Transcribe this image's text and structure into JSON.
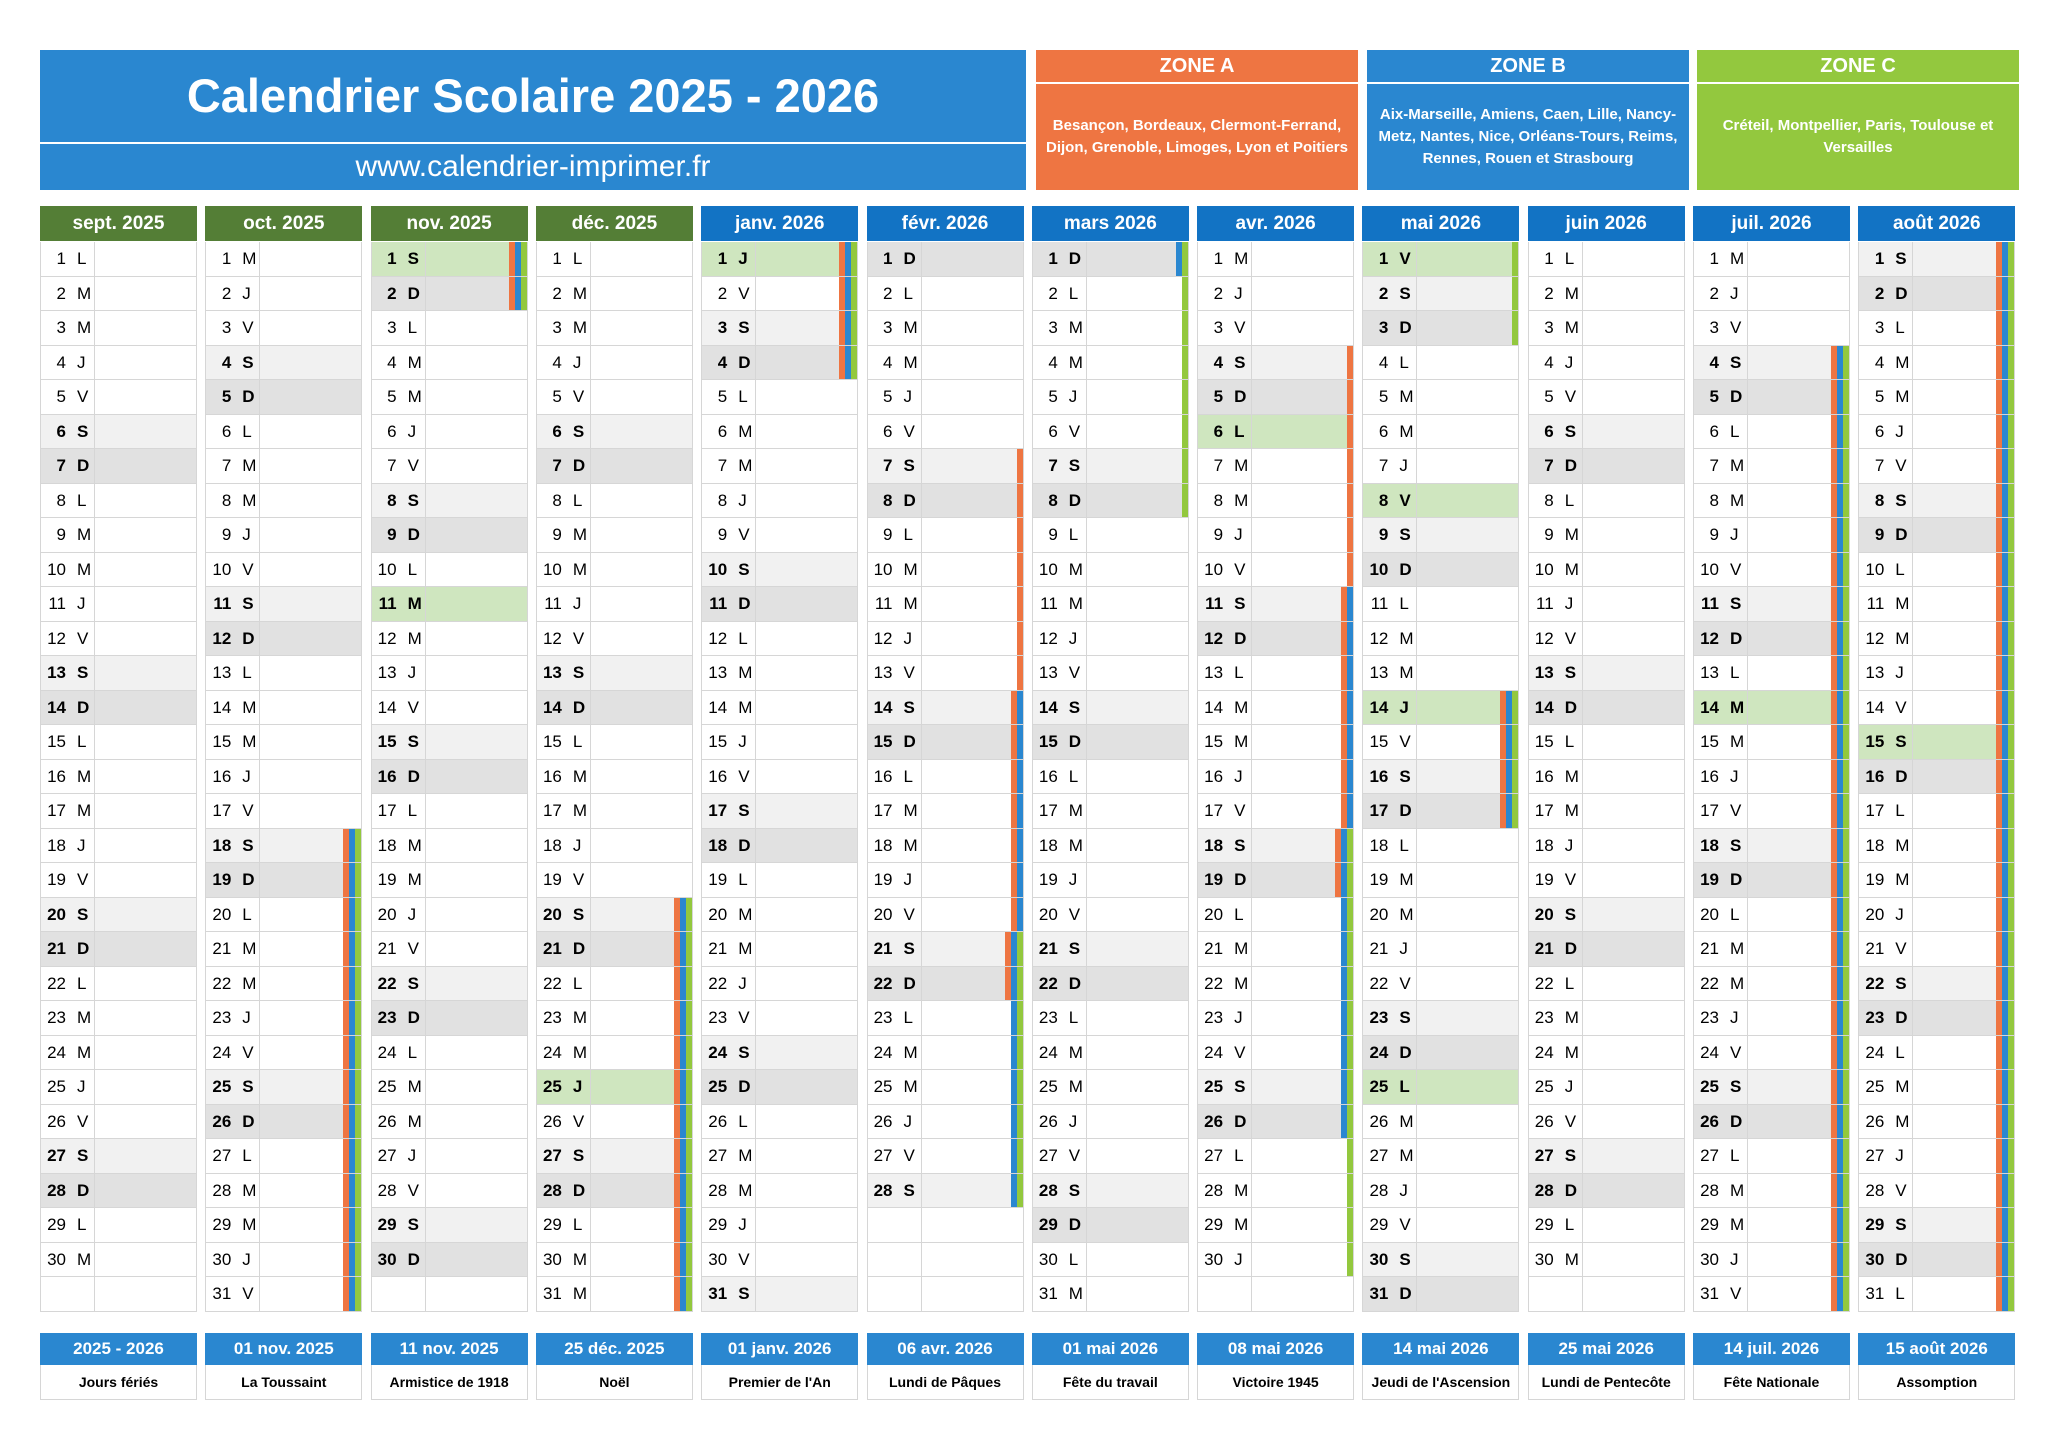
{
  "header": {
    "title": "Calendrier Scolaire 2025 - 2026",
    "website": "www.calendrier-imprimer.fr"
  },
  "zones": [
    {
      "name": "ZONE A",
      "color": "#ee7542",
      "cities": "Besançon, Bordeaux, Clermont-Ferrand, Dijon, Grenoble, Limoges, Lyon et Poitiers"
    },
    {
      "name": "ZONE B",
      "color": "#2a87d0",
      "cities": "Aix-Marseille, Amiens, Caen, Lille, Nancy-Metz, Nantes, Nice, Orléans-Tours, Reims, Rennes, Rouen et Strasbourg"
    },
    {
      "name": "ZONE C",
      "color": "#93c83e",
      "cities": "Créteil, Montpellier, Paris, Toulouse et Versailles"
    }
  ],
  "colors": {
    "quarter_2025_header": "#547e36",
    "quarter_2026_header": "#1273c4",
    "holiday_fill": "#cfe6bf",
    "saturday_fill": "#f1f1f1",
    "sunday_fill": "#e1e1e1"
  },
  "months": [
    {
      "label": "sept. 2025",
      "year": 2025,
      "month": 9,
      "days": 30,
      "holidays": [],
      "zones": {
        "a": [],
        "b": [],
        "c": []
      }
    },
    {
      "label": "oct. 2025",
      "year": 2025,
      "month": 10,
      "days": 31,
      "holidays": [],
      "zones": {
        "a": [
          [
            18,
            31
          ]
        ],
        "b": [
          [
            18,
            31
          ]
        ],
        "c": [
          [
            18,
            31
          ]
        ]
      }
    },
    {
      "label": "nov. 2025",
      "year": 2025,
      "month": 11,
      "days": 30,
      "holidays": [
        1,
        11
      ],
      "zones": {
        "a": [
          [
            1,
            2
          ]
        ],
        "b": [
          [
            1,
            2
          ]
        ],
        "c": [
          [
            1,
            2
          ]
        ]
      }
    },
    {
      "label": "déc. 2025",
      "year": 2025,
      "month": 12,
      "days": 31,
      "holidays": [
        25
      ],
      "zones": {
        "a": [
          [
            20,
            31
          ]
        ],
        "b": [
          [
            20,
            31
          ]
        ],
        "c": [
          [
            20,
            31
          ]
        ]
      }
    },
    {
      "label": "janv. 2026",
      "year": 2026,
      "month": 1,
      "days": 31,
      "holidays": [
        1
      ],
      "zones": {
        "a": [
          [
            1,
            4
          ]
        ],
        "b": [
          [
            1,
            4
          ]
        ],
        "c": [
          [
            1,
            4
          ]
        ]
      }
    },
    {
      "label": "févr. 2026",
      "year": 2026,
      "month": 2,
      "days": 28,
      "holidays": [],
      "zones": {
        "a": [
          [
            7,
            22
          ]
        ],
        "b": [
          [
            14,
            28
          ]
        ],
        "c": [
          [
            21,
            28
          ]
        ]
      }
    },
    {
      "label": "mars 2026",
      "year": 2026,
      "month": 3,
      "days": 31,
      "holidays": [],
      "zones": {
        "a": [],
        "b": [
          [
            1,
            1
          ]
        ],
        "c": [
          [
            1,
            8
          ]
        ]
      }
    },
    {
      "label": "avr. 2026",
      "year": 2026,
      "month": 4,
      "days": 30,
      "holidays": [
        6
      ],
      "zones": {
        "a": [
          [
            4,
            19
          ]
        ],
        "b": [
          [
            11,
            26
          ]
        ],
        "c": [
          [
            18,
            30
          ]
        ]
      }
    },
    {
      "label": "mai 2026",
      "year": 2026,
      "month": 5,
      "days": 31,
      "holidays": [
        1,
        8,
        14,
        25
      ],
      "zones": {
        "a": [
          [
            14,
            17
          ]
        ],
        "b": [
          [
            14,
            17
          ]
        ],
        "c": [
          [
            1,
            3
          ],
          [
            14,
            17
          ]
        ]
      }
    },
    {
      "label": "juin 2026",
      "year": 2026,
      "month": 6,
      "days": 30,
      "holidays": [],
      "zones": {
        "a": [],
        "b": [],
        "c": []
      }
    },
    {
      "label": "juil. 2026",
      "year": 2026,
      "month": 7,
      "days": 31,
      "holidays": [
        14
      ],
      "zones": {
        "a": [
          [
            4,
            31
          ]
        ],
        "b": [
          [
            4,
            31
          ]
        ],
        "c": [
          [
            4,
            31
          ]
        ]
      }
    },
    {
      "label": "août 2026",
      "year": 2026,
      "month": 8,
      "days": 31,
      "holidays": [
        15
      ],
      "zones": {
        "a": [
          [
            1,
            31
          ]
        ],
        "b": [
          [
            1,
            31
          ]
        ],
        "c": [
          [
            1,
            31
          ]
        ]
      }
    }
  ],
  "day_letters": [
    "D",
    "L",
    "M",
    "M",
    "J",
    "V",
    "S"
  ],
  "holidays_footer": [
    {
      "date": "2025 - 2026",
      "name": "Jours fériés"
    },
    {
      "date": "01 nov. 2025",
      "name": "La Toussaint"
    },
    {
      "date": "11 nov. 2025",
      "name": "Armistice de 1918"
    },
    {
      "date": "25 déc. 2025",
      "name": "Noël"
    },
    {
      "date": "01 janv. 2026",
      "name": "Premier de l'An"
    },
    {
      "date": "06 avr. 2026",
      "name": "Lundi de Pâques"
    },
    {
      "date": "01 mai 2026",
      "name": "Fête du travail"
    },
    {
      "date": "08 mai 2026",
      "name": "Victoire 1945"
    },
    {
      "date": "14 mai 2026",
      "name": "Jeudi de l'Ascension"
    },
    {
      "date": "25 mai 2026",
      "name": "Lundi de Pentecôte"
    },
    {
      "date": "14 juil. 2026",
      "name": "Fête Nationale"
    },
    {
      "date": "15 août 2026",
      "name": "Assomption"
    }
  ]
}
